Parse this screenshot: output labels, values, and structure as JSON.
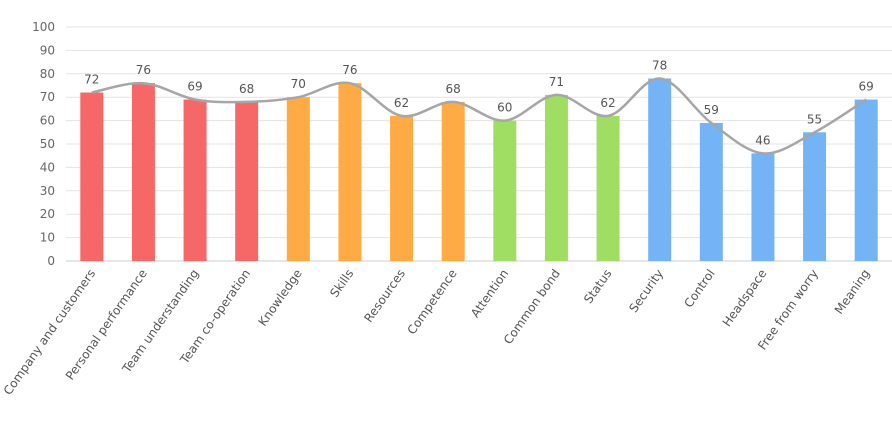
{
  "chart_data": {
    "type": "bar",
    "title": "",
    "xlabel": "",
    "ylabel": "",
    "ylim": [
      0,
      100
    ],
    "yticks": [
      0,
      10,
      20,
      30,
      40,
      50,
      60,
      70,
      80,
      90,
      100
    ],
    "grid": true,
    "categories": [
      "Company and customers",
      "Personal performance",
      "Team understanding",
      "Team co-operation",
      "Knowledge",
      "Skills",
      "Resources",
      "Competence",
      "Attention",
      "Common bond",
      "Status",
      "Security",
      "Control",
      "Headspace",
      "Free from worry",
      "Meaning"
    ],
    "values": [
      72,
      76,
      69,
      68,
      70,
      76,
      62,
      68,
      60,
      71,
      62,
      78,
      59,
      46,
      55,
      69
    ],
    "bar_colors": [
      "#f66767",
      "#f66767",
      "#f66767",
      "#f66767",
      "#ffab45",
      "#ffab45",
      "#ffab45",
      "#ffab45",
      "#a0dd63",
      "#a0dd63",
      "#a0dd63",
      "#73b3f6",
      "#73b3f6",
      "#73b3f6",
      "#73b3f6",
      "#73b3f6"
    ],
    "trend_line": {
      "color": "#a6a6a6",
      "style": "smooth",
      "values": [
        72,
        76,
        69,
        68,
        70,
        76,
        62,
        68,
        60,
        71,
        62,
        78,
        59,
        46,
        55,
        69
      ]
    }
  }
}
